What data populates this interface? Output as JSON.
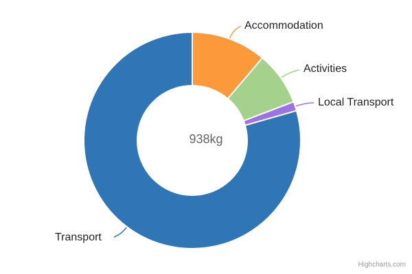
{
  "chart_data": {
    "type": "pie",
    "subtype": "donut",
    "center_label": "938kg",
    "total": 938,
    "unit": "kg",
    "start_angle_deg": 0,
    "inner_radius_pct": 51,
    "legend": "off",
    "slices": [
      {
        "label": "Accommodation",
        "value": 105,
        "color": "#fc9a3b"
      },
      {
        "label": "Activities",
        "value": 75,
        "color": "#a4d18c"
      },
      {
        "label": "Local Transport",
        "value": 13,
        "color": "#9b73e3"
      },
      {
        "label": "Transport",
        "value": 745,
        "color": "#2e76b5"
      }
    ]
  },
  "colors": {
    "label_text": "#222222",
    "center_text": "#666666",
    "slice_border": "#ffffff",
    "credits_text": "#999999"
  },
  "credits": {
    "label": "Highcharts.com"
  }
}
